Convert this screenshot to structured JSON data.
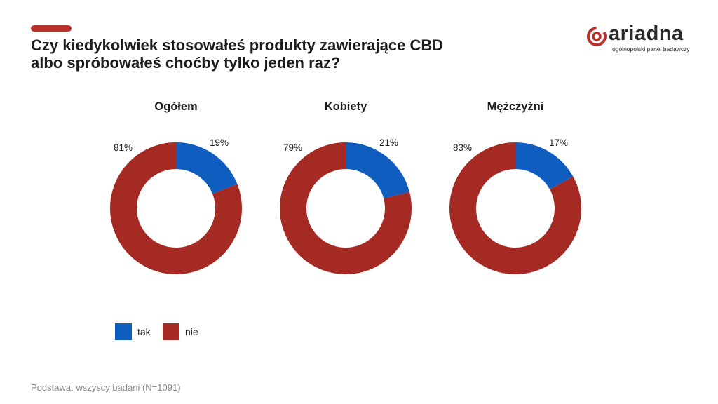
{
  "header": {
    "title_line1": "Czy kiedykolwiek stosowałeś produkty zawierające CBD",
    "title_line2": "albo spróbowałeś choćby tylko jeden raz?"
  },
  "logo": {
    "name": "ariadna",
    "tagline": "ogólnopolski panel badawczy"
  },
  "colors": {
    "tak": "#0E5DBF",
    "nie": "#A52A23",
    "accent": "#B8312B"
  },
  "chart_data": [
    {
      "type": "pie",
      "title": "Ogółem",
      "labels": [
        "tak",
        "nie"
      ],
      "values": [
        19,
        81
      ],
      "value_labels": [
        "19%",
        "81%"
      ]
    },
    {
      "type": "pie",
      "title": "Kobiety",
      "labels": [
        "tak",
        "nie"
      ],
      "values": [
        21,
        79
      ],
      "value_labels": [
        "21%",
        "79%"
      ]
    },
    {
      "type": "pie",
      "title": "Mężczyźni",
      "labels": [
        "tak",
        "nie"
      ],
      "values": [
        17,
        83
      ],
      "value_labels": [
        "17%",
        "83%"
      ]
    }
  ],
  "legend": {
    "items": [
      {
        "label": "tak"
      },
      {
        "label": "nie"
      }
    ]
  },
  "footnote": "Podstawa: wszyscy badani (N=1091)"
}
